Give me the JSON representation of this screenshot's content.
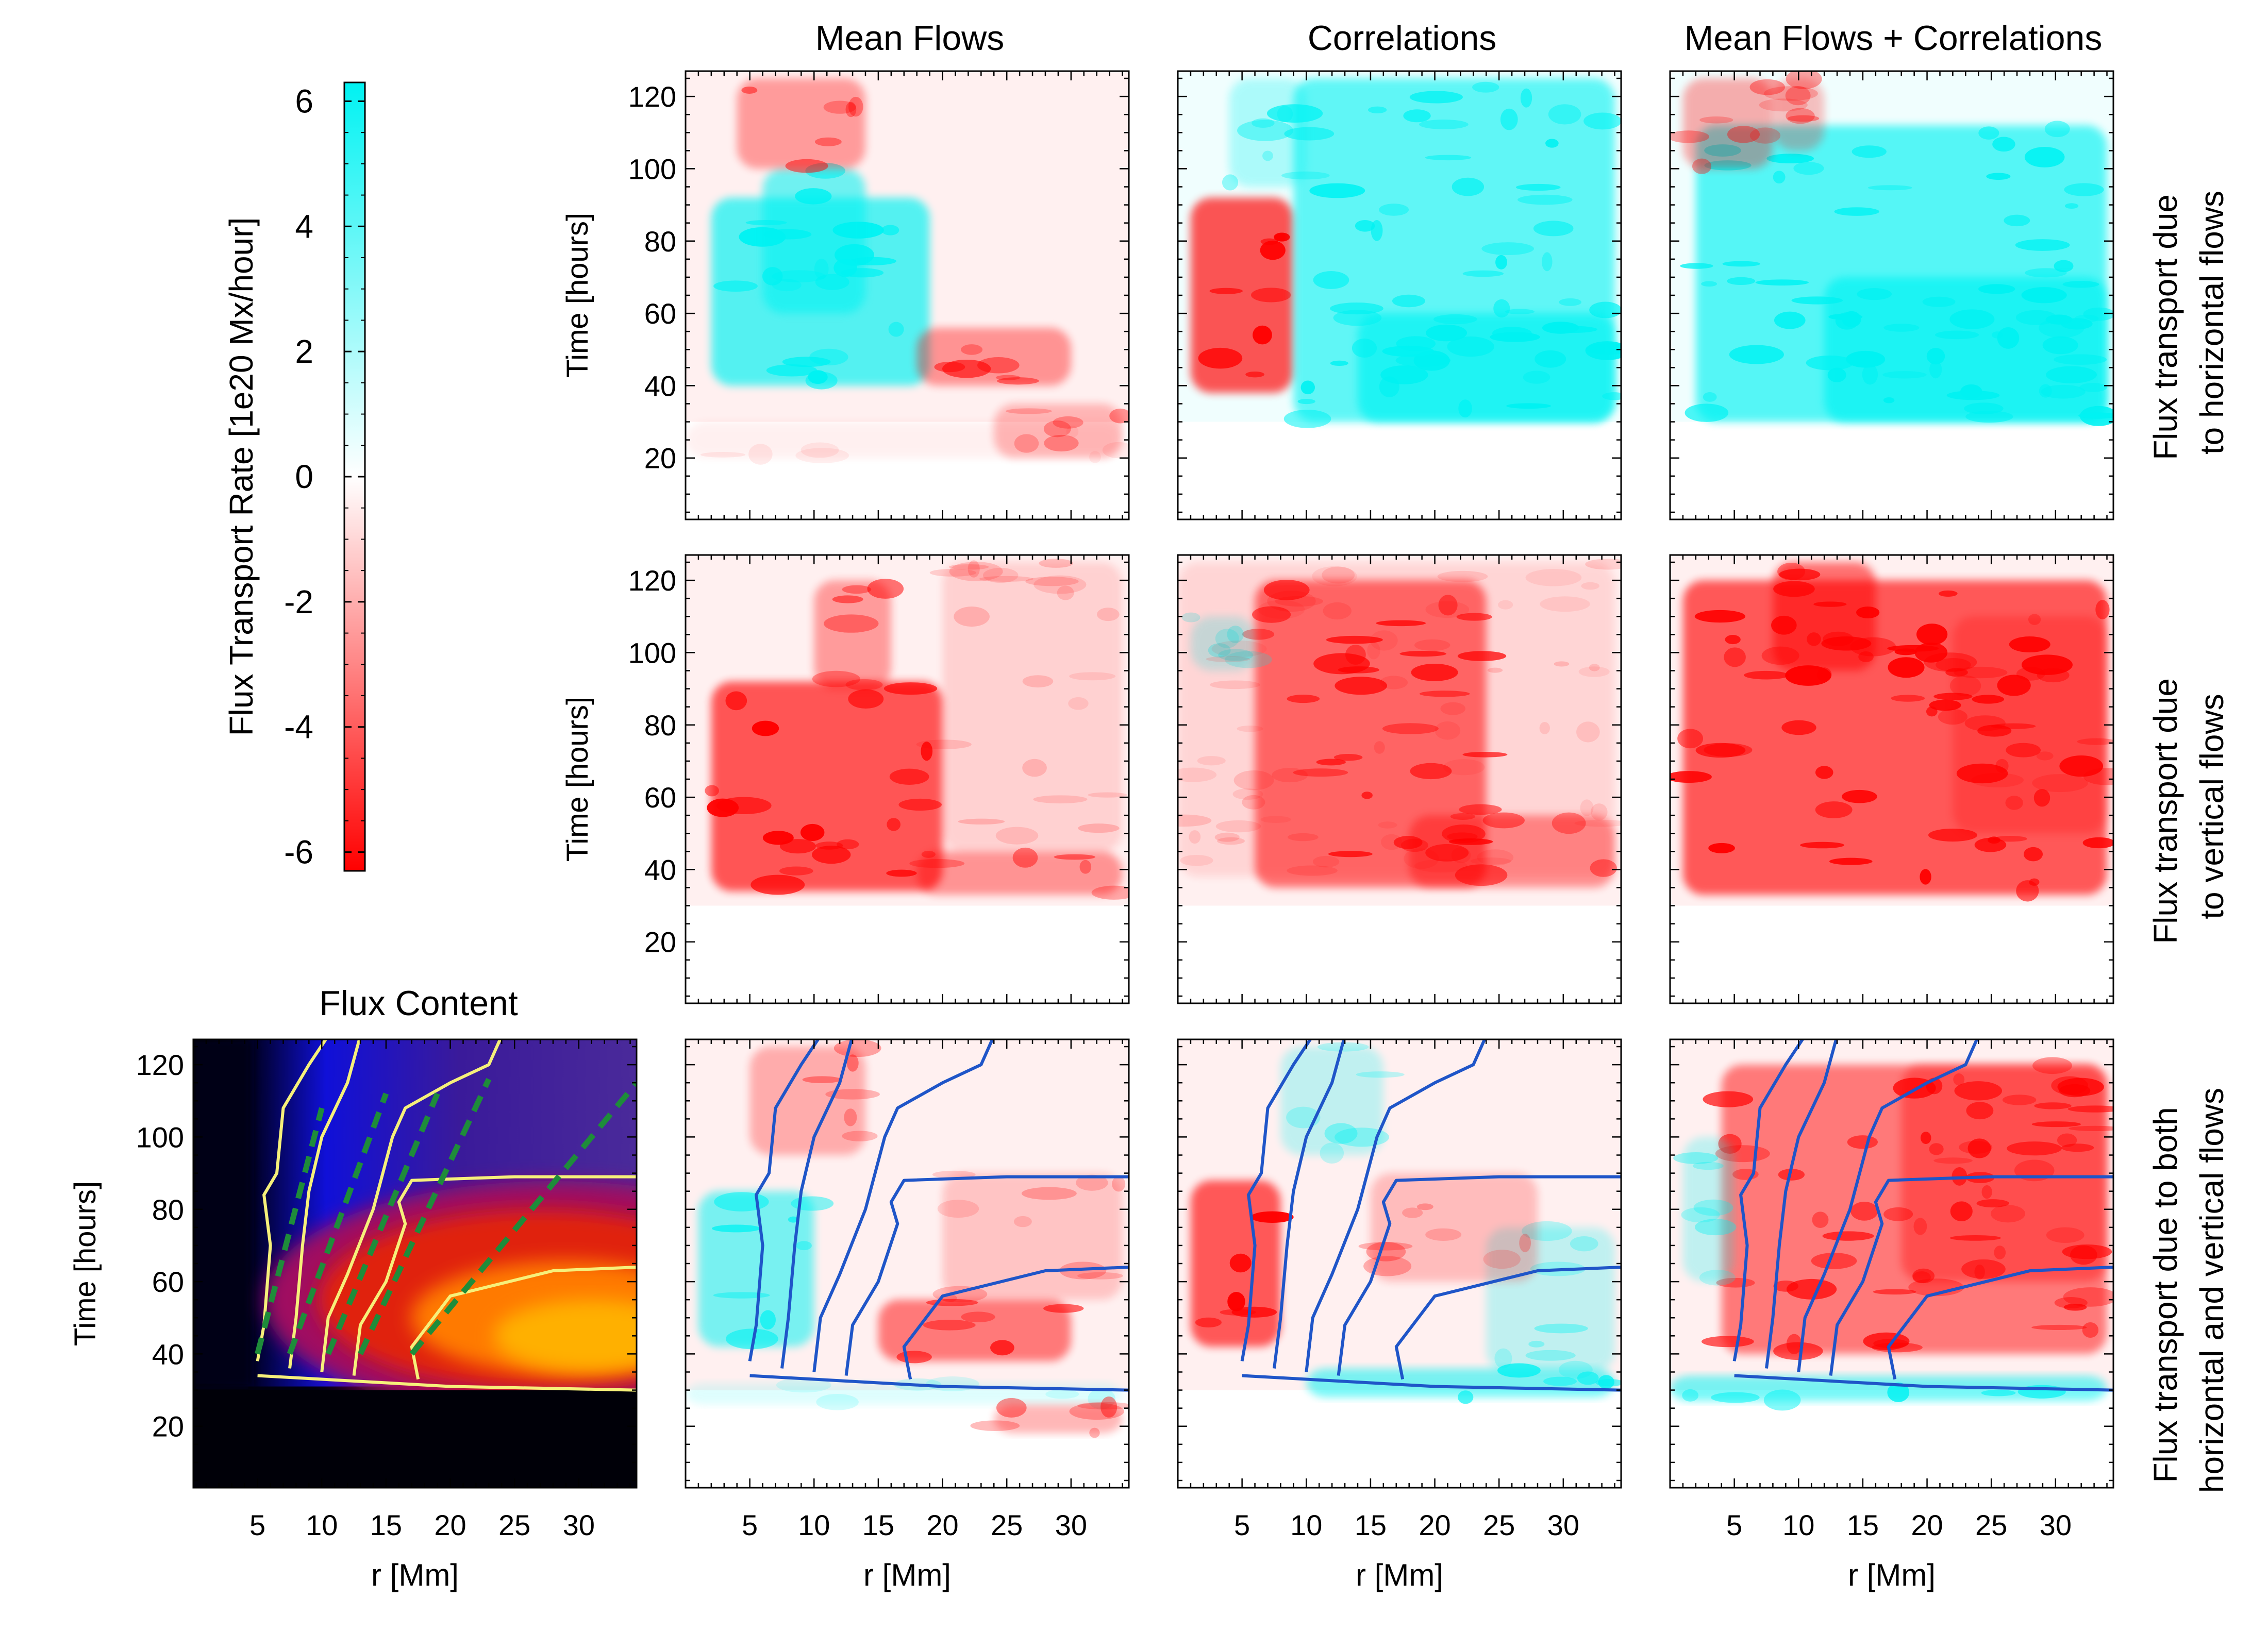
{
  "figure": {
    "column_titles": [
      "Mean Flows",
      "Correlations",
      "Mean Flows + Correlations"
    ],
    "row_titles": [
      [
        "Flux transport due",
        "to horizontal flows"
      ],
      [
        "Flux transport due",
        "to vertical flows"
      ],
      [
        "Flux transport due to both",
        "horizontal and vertical flows"
      ]
    ],
    "flux_content_title": "Flux Content",
    "colorbar": {
      "label": "Flux Transport Rate [1e20 Mx/hour]",
      "min": -6.3,
      "max": 6.3,
      "ticks": [
        6,
        4,
        2,
        0,
        -2,
        -4,
        -6
      ],
      "colors": {
        "positive": "#00f2f2",
        "zero": "#ffffff",
        "negative": "#ff0000"
      }
    },
    "axes": {
      "xlabel": "r [Mm]",
      "ylabel": "Time [hours]",
      "xlim": [
        0,
        34.5
      ],
      "ylim": [
        3,
        127
      ],
      "xticks": [
        5,
        10,
        15,
        20,
        25,
        30
      ],
      "yticks": [
        20,
        40,
        60,
        80,
        100,
        120
      ]
    }
  },
  "chart_data": [
    {
      "type": "heatmap",
      "title": "Flux Content",
      "colormap": "black-blue-purple-red-orange",
      "xlabel": "r [Mm]",
      "ylabel": "Time [hours]",
      "xlim": [
        0,
        34.5
      ],
      "ylim": [
        3,
        127
      ],
      "contours_yellow": [
        [
          [
            5,
            38
          ],
          [
            5.5,
            48
          ],
          [
            6,
            70
          ],
          [
            5.5,
            84
          ],
          [
            6.5,
            90
          ],
          [
            7,
            108
          ],
          [
            9,
            120
          ],
          [
            10.5,
            128
          ]
        ],
        [
          [
            7.5,
            36
          ],
          [
            8,
            50
          ],
          [
            8.5,
            70
          ],
          [
            9,
            85
          ],
          [
            10,
            100
          ],
          [
            12,
            115
          ],
          [
            13,
            128
          ]
        ],
        [
          [
            10,
            35
          ],
          [
            10.5,
            50
          ],
          [
            12,
            62
          ],
          [
            14,
            80
          ],
          [
            15.5,
            100
          ],
          [
            16.5,
            108
          ],
          [
            20,
            115
          ],
          [
            23,
            120
          ],
          [
            24,
            128
          ]
        ],
        [
          [
            12.5,
            34
          ],
          [
            13,
            48
          ],
          [
            15,
            60
          ],
          [
            16.5,
            76
          ],
          [
            16,
            82
          ],
          [
            17,
            88
          ],
          [
            25,
            89
          ],
          [
            34.5,
            89
          ]
        ],
        [
          [
            17.5,
            33
          ],
          [
            17,
            42
          ],
          [
            20,
            56
          ],
          [
            28,
            63
          ],
          [
            34.5,
            64
          ]
        ],
        [
          [
            5,
            34
          ],
          [
            20,
            31
          ],
          [
            34.5,
            30
          ]
        ]
      ],
      "dashed_lines_green": [
        [
          [
            5,
            40
          ],
          [
            10,
            108
          ]
        ],
        [
          [
            7.5,
            40
          ],
          [
            15,
            112
          ]
        ],
        [
          [
            10.5,
            40
          ],
          [
            19,
            112
          ]
        ],
        [
          [
            13,
            40
          ],
          [
            23,
            116
          ]
        ],
        [
          [
            17,
            40
          ],
          [
            34.5,
            115
          ]
        ]
      ]
    },
    {
      "type": "heatmap",
      "panels": [
        {
          "row": 1,
          "column": "Mean Flows",
          "dominant": "positive band 35-95 h at r 3-20 Mm; negative 40-55 h at r 18-30; negative near top-left"
        },
        {
          "row": 1,
          "column": "Correlations",
          "dominant": "strong negative 40-90 h at r 3-10; strong positive elsewhere above 28 h"
        },
        {
          "row": 1,
          "column": "Mean Flows + Correlations",
          "dominant": "strong positive above 28 h; weak negative top-left"
        },
        {
          "row": 2,
          "column": "Mean Flows",
          "dominant": "strong negative 35-95 h at r 3-20 Mm"
        },
        {
          "row": 2,
          "column": "Correlations",
          "dominant": "negative streaks 35-120 h at r 7-25 Mm"
        },
        {
          "row": 2,
          "column": "Mean Flows + Correlations",
          "dominant": "strong negative 33-120 h at r 3-34 Mm"
        },
        {
          "row": 3,
          "column": "Mean Flows",
          "dominant": "positive 40-85 h at r 2-10; negative patches; blue contours overlaid"
        },
        {
          "row": 3,
          "column": "Correlations",
          "dominant": "negative 40-90 h at r 3-8; positive band near 30 h; blue contours"
        },
        {
          "row": 3,
          "column": "Mean Flows + Correlations",
          "dominant": "mixed negative streaks; positive band near 30 h; blue contours"
        }
      ]
    }
  ]
}
